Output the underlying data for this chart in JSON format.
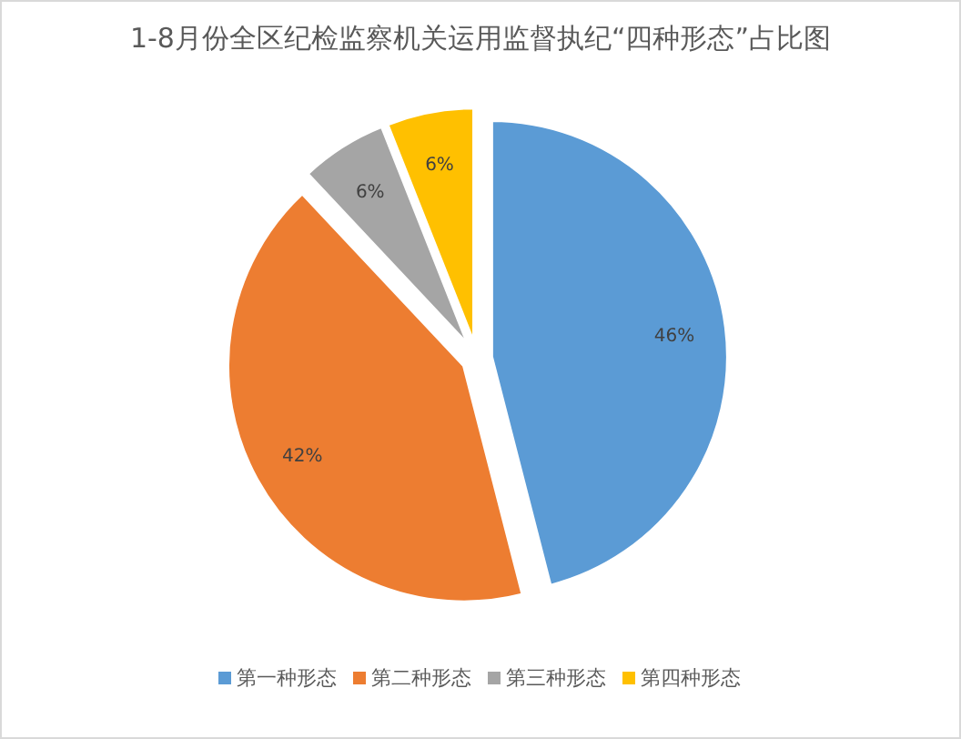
{
  "chart_data": {
    "type": "pie",
    "title": "1-8月份全区纪检监察机关运用监督执纪“四种形态”占比图",
    "categories": [
      "第一种形态",
      "第二种形态",
      "第三种形态",
      "第四种形态"
    ],
    "values": [
      46,
      42,
      6,
      6
    ],
    "value_labels": [
      "46%",
      "42%",
      "6%",
      "6%"
    ],
    "colors": [
      "#5b9bd5",
      "#ed7d31",
      "#a5a5a5",
      "#ffc000"
    ],
    "legend": "bottom"
  }
}
